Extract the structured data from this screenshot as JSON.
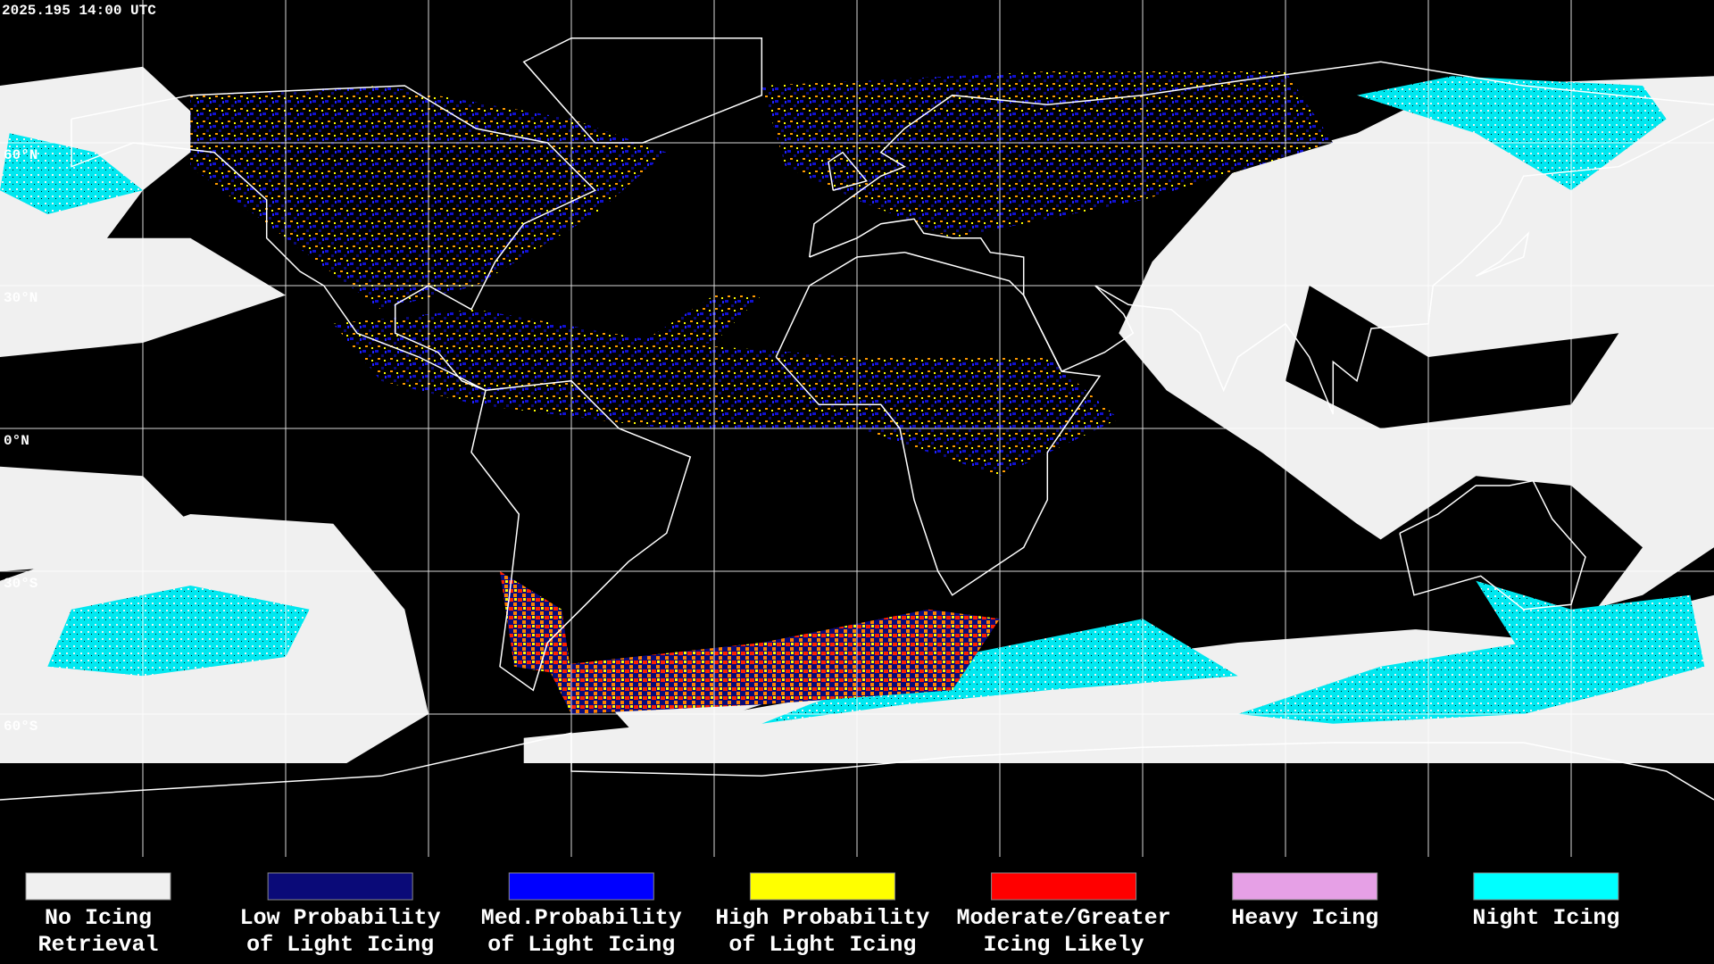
{
  "header": {
    "timestamp": "2025.195 14:00 UTC"
  },
  "map": {
    "latitude_labels": [
      "60°N",
      "30°N",
      "0°N",
      "30°S",
      "60°S"
    ]
  },
  "legend": {
    "items": [
      {
        "label_lines": [
          "No Icing",
          "Retrieval"
        ],
        "color": "#f0f0f0"
      },
      {
        "label_lines": [
          "Low Probability",
          "of Light Icing"
        ],
        "color": "#0a0a78"
      },
      {
        "label_lines": [
          "Med.Probability",
          "of Light Icing"
        ],
        "color": "#0000ff"
      },
      {
        "label_lines": [
          "High Probability",
          "of Light Icing"
        ],
        "color": "#ffff00"
      },
      {
        "label_lines": [
          "Moderate/Greater",
          "Icing Likely"
        ],
        "color": "#ff0000"
      },
      {
        "label_lines": [
          "Heavy Icing"
        ],
        "color": "#e6a0e6"
      },
      {
        "label_lines": [
          "Night Icing"
        ],
        "color": "#00ffff"
      }
    ]
  }
}
